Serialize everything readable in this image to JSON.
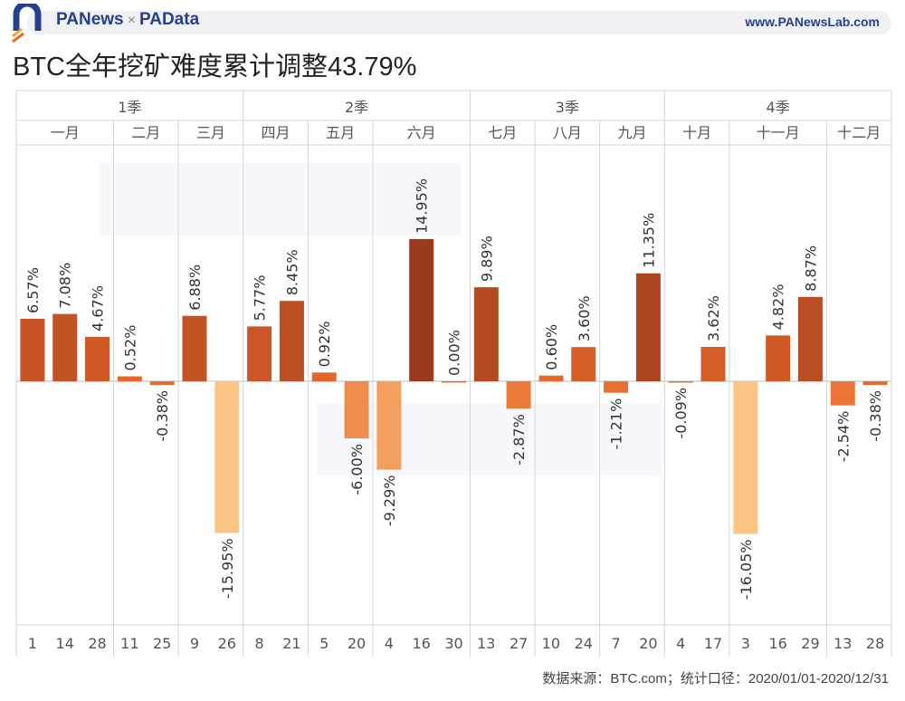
{
  "header": {
    "brand_left": "PANews",
    "brand_sep": "×",
    "brand_right": "PAData",
    "site": "www.PANewsLab.com"
  },
  "title": "BTC全年挖矿难度累计调整43.79%",
  "source": "数据来源：BTC.com；统计口径：2020/01/01-2020/12/31",
  "watermark": [
    "PANews",
    "PAData"
  ],
  "chart_data": {
    "type": "bar",
    "ylim": [
      -17,
      16
    ],
    "quarters": [
      {
        "label": "1季",
        "months": 3
      },
      {
        "label": "2季",
        "months": 3
      },
      {
        "label": "3季",
        "months": 3
      },
      {
        "label": "4季",
        "months": 3
      }
    ],
    "months": [
      {
        "label": "一月",
        "days": [
          "1",
          "14",
          "28"
        ],
        "values": [
          6.57,
          7.08,
          4.67
        ]
      },
      {
        "label": "二月",
        "days": [
          "11",
          "25"
        ],
        "values": [
          0.52,
          -0.38
        ]
      },
      {
        "label": "三月",
        "days": [
          "9",
          "26"
        ],
        "values": [
          6.88,
          -15.95
        ]
      },
      {
        "label": "四月",
        "days": [
          "8",
          "21"
        ],
        "values": [
          5.77,
          8.45
        ]
      },
      {
        "label": "五月",
        "days": [
          "5",
          "20"
        ],
        "values": [
          0.92,
          -6.0
        ]
      },
      {
        "label": "六月",
        "days": [
          "4",
          "16",
          "30"
        ],
        "values": [
          -9.29,
          14.95,
          0.0
        ]
      },
      {
        "label": "七月",
        "days": [
          "13",
          "27"
        ],
        "values": [
          9.89,
          -2.87
        ]
      },
      {
        "label": "八月",
        "days": [
          "10",
          "24"
        ],
        "values": [
          0.6,
          3.6
        ]
      },
      {
        "label": "九月",
        "days": [
          "7",
          "20"
        ],
        "values": [
          -1.21,
          11.35
        ]
      },
      {
        "label": "十月",
        "days": [
          "4",
          "17"
        ],
        "values": [
          -0.09,
          3.62
        ]
      },
      {
        "label": "十一月",
        "days": [
          "3",
          "16",
          "29"
        ],
        "values": [
          -16.05,
          4.82,
          8.87
        ]
      },
      {
        "label": "十二月",
        "days": [
          "13",
          "28"
        ],
        "values": [
          -2.54,
          -0.38
        ]
      }
    ],
    "data_labels": [
      "6.57%",
      "7.08%",
      "4.67%",
      "0.52%",
      "-0.38%",
      "6.88%",
      "-15.95%",
      "5.77%",
      "8.45%",
      "0.92%",
      "-6.00%",
      "-9.29%",
      "14.95%",
      "0.00%",
      "9.89%",
      "-2.87%",
      "0.60%",
      "3.60%",
      "-1.21%",
      "11.35%",
      "-0.09%",
      "3.62%",
      "-16.05%",
      "4.82%",
      "8.87%",
      "-2.54%",
      "-0.38%"
    ],
    "color_scale": {
      "low": "#fdc585",
      "mid": "#e8692a",
      "high": "#9a3a1e"
    }
  }
}
